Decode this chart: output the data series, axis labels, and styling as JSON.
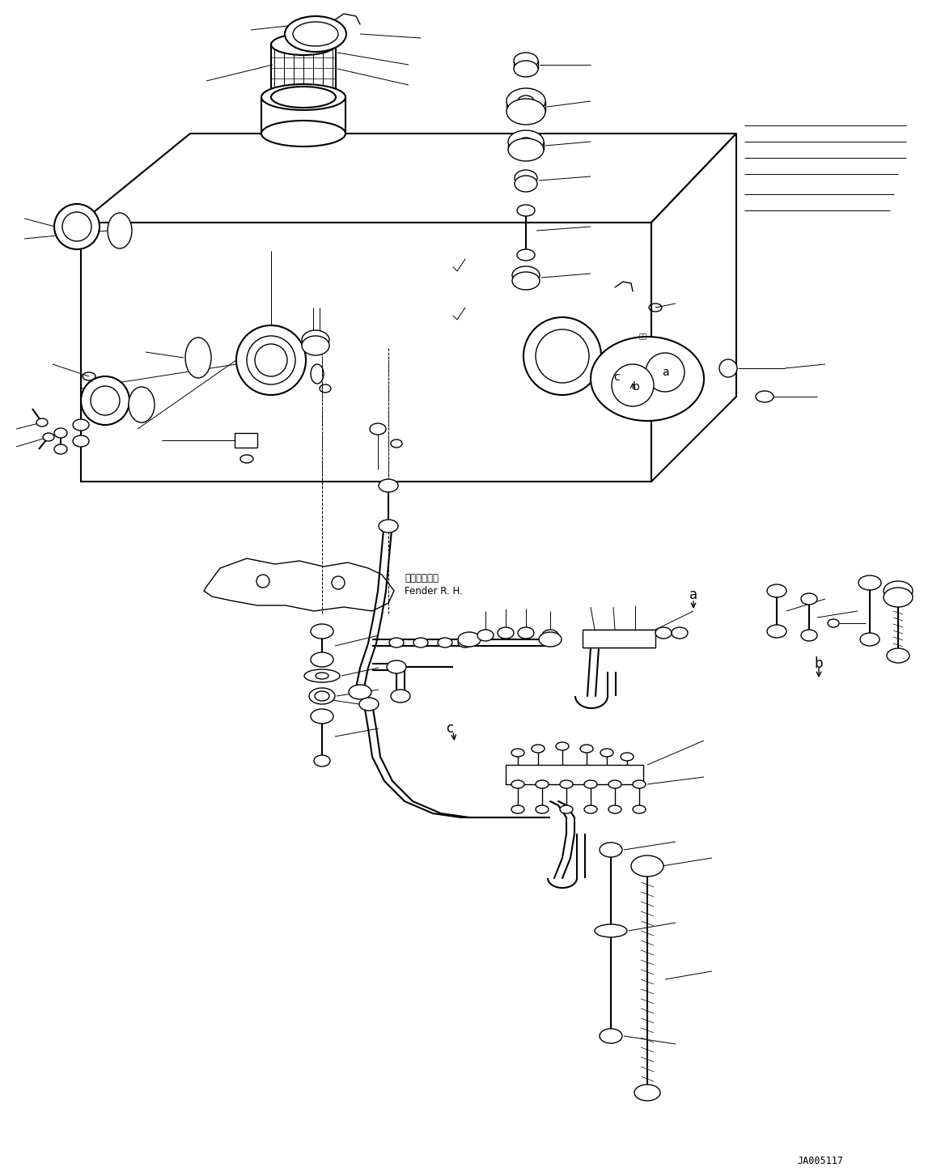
{
  "background_color": "#ffffff",
  "line_color": "#000000",
  "figure_width": 11.63,
  "figure_height": 14.53,
  "dpi": 100,
  "reference_code": "JA005117",
  "fender_label_line1": "フェンダ　右",
  "fender_label_line2": "Fender R. H.",
  "label_a": "a",
  "label_b": "b",
  "label_c": "c"
}
